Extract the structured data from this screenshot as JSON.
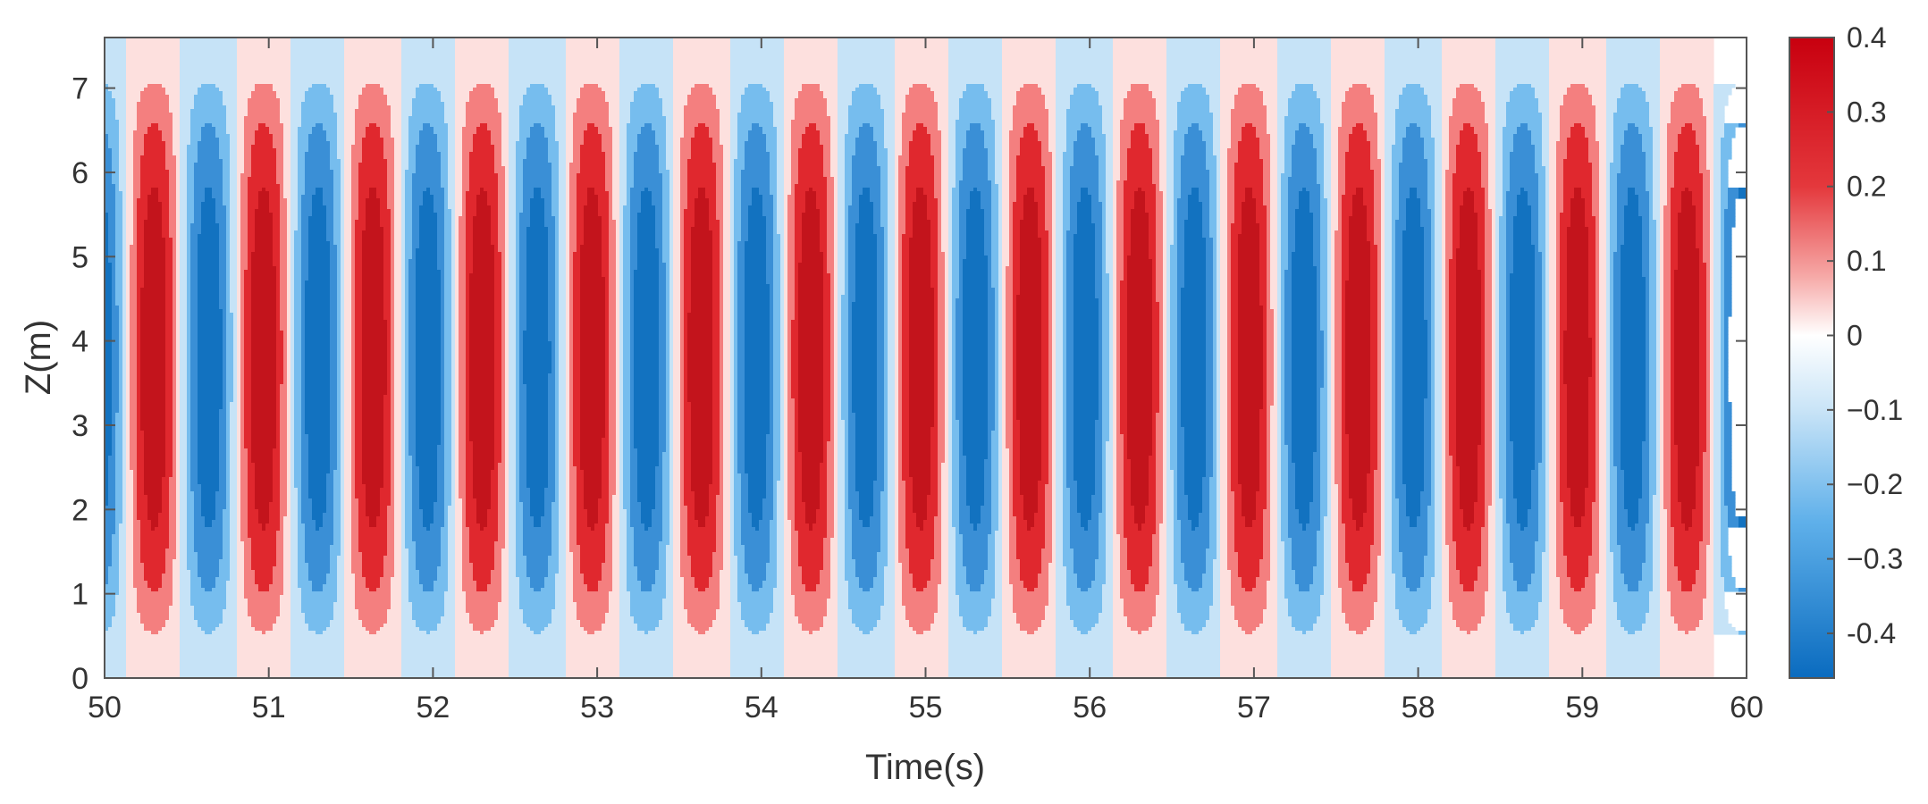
{
  "chart_data": {
    "type": "heatmap",
    "xlabel": "Time(s)",
    "ylabel": "Z(m)",
    "xlim": [
      50,
      60
    ],
    "ylim": [
      0,
      7.6
    ],
    "x_ticks": [
      "50",
      "51",
      "52",
      "53",
      "54",
      "55",
      "56",
      "57",
      "58",
      "59",
      "60"
    ],
    "y_ticks": [
      "0",
      "1",
      "2",
      "3",
      "4",
      "5",
      "6",
      "7"
    ],
    "grid": false,
    "colorbar": {
      "position": "right",
      "range": [
        -0.46,
        0.4
      ],
      "tick_values": [
        0.4,
        0.3,
        0.2,
        0.1,
        0,
        -0.1,
        -0.2,
        -0.3,
        -0.4
      ],
      "tick_labels": [
        "0.4",
        "0.3",
        "0.2",
        "0.1",
        "0",
        "−0.1",
        "−0.2",
        "−0.3",
        "-0.4"
      ]
    },
    "field": {
      "description_units": "value at (time, Z)",
      "period_s": 0.667,
      "first_crest_time_s": 50.3,
      "amplitude": 0.4,
      "vertical_center_m": 3.8,
      "vertical_half_width_m": 3.4
    },
    "levels": [
      {
        "min": 0.3,
        "color": "#c3141c"
      },
      {
        "min": 0.2,
        "color": "#e0282e"
      },
      {
        "min": 0.1,
        "color": "#f47f7f"
      },
      {
        "min": 0.0,
        "color": "#fde0de"
      },
      {
        "min": -0.1,
        "color": "#c6e3f7"
      },
      {
        "min": -0.2,
        "color": "#76bdee"
      },
      {
        "min": -0.3,
        "color": "#3a8fd6"
      },
      {
        "min": -1.0,
        "color": "#1272c0"
      }
    ],
    "colorbar_stops": [
      {
        "value": 0.4,
        "color": "#c8000f"
      },
      {
        "value": 0.2,
        "color": "#e4383c"
      },
      {
        "value": 0.08,
        "color": "#f6a8a6"
      },
      {
        "value": 0.0,
        "color": "#ffffff"
      },
      {
        "value": -0.1,
        "color": "#c9e4f7"
      },
      {
        "value": -0.25,
        "color": "#5fb0ea"
      },
      {
        "value": -0.46,
        "color": "#0a6bbf"
      }
    ]
  }
}
